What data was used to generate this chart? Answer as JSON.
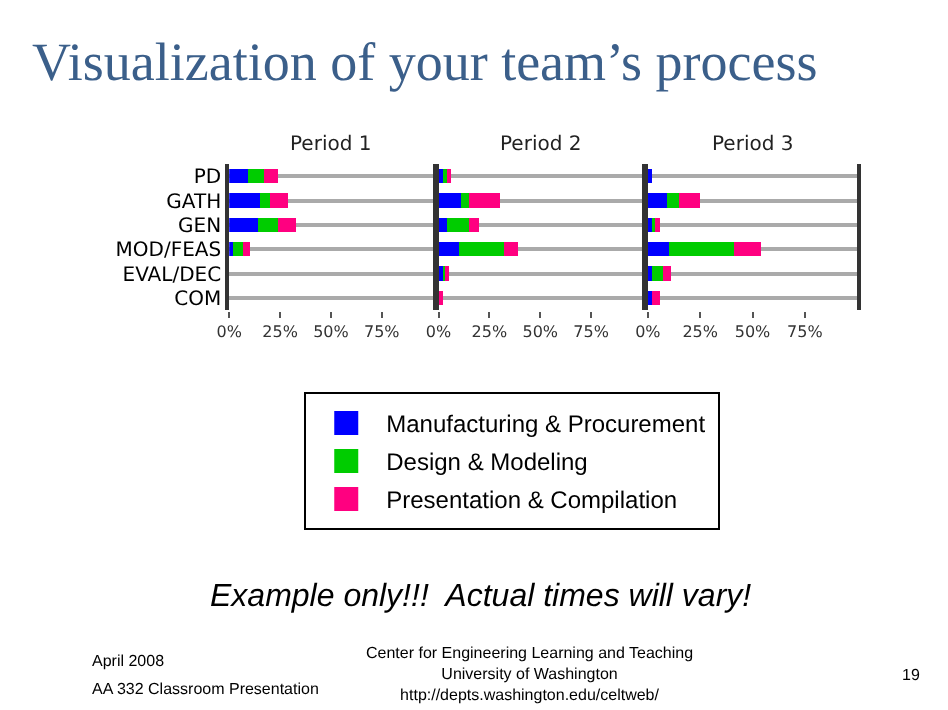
{
  "chart_data": [
    {
      "type": "bar",
      "orientation": "horizontal",
      "stacked": true,
      "title": "Period 1",
      "categories": [
        "PD",
        "GATH",
        "GEN",
        "MOD/FEAS",
        "EVAL/DEC",
        "COM"
      ],
      "series": [
        {
          "name": "Manufacturing & Procurement",
          "color": "#0000ff",
          "values": [
            9,
            15,
            14,
            2,
            0,
            0
          ]
        },
        {
          "name": "Design & Modeling",
          "color": "#00cc00",
          "values": [
            8,
            5,
            10,
            5,
            0,
            0
          ]
        },
        {
          "name": "Presentation & Compilation",
          "color": "#ff0080",
          "values": [
            7,
            9,
            9,
            3,
            0,
            0
          ]
        }
      ],
      "xlim": [
        0,
        100
      ],
      "xticks": [
        {
          "value": 0,
          "label": "0%"
        },
        {
          "value": 25,
          "label": "25%"
        },
        {
          "value": 50,
          "label": "50%"
        },
        {
          "value": 75,
          "label": "75%"
        }
      ],
      "grid": "y",
      "legend": "bottom",
      "annotations": [
        "Visualization of your team’s process",
        "Example only!!!  Actual times will vary!",
        "April 2008",
        "AA 332 Classroom Presentation",
        "Center for Engineering Learning and Teaching\nUniversity of Washington\nhttp://depts.washington.edu/celtweb/",
        "19"
      ]
    },
    {
      "type": "bar",
      "orientation": "horizontal",
      "stacked": true,
      "title": "Period 2",
      "categories": [
        null,
        null,
        null,
        null,
        null,
        null
      ],
      "series": [
        {
          "color": "#0000ff",
          "values": [
            2,
            11,
            4,
            10,
            2,
            0
          ]
        },
        {
          "color": "#00cc00",
          "values": [
            2,
            4,
            11,
            22,
            1,
            0
          ]
        },
        {
          "color": "#ff0080",
          "values": [
            1,
            15,
            5,
            7,
            2,
            1
          ]
        }
      ],
      "xlim": [
        0,
        100
      ],
      "xticks": [
        {
          "value": 0,
          "label": "0%"
        },
        {
          "value": 25,
          "label": "25%"
        },
        {
          "value": 50,
          "label": "50%"
        },
        {
          "value": 75,
          "label": "75%"
        }
      ],
      "grid": "y",
      "tick_labels": "x"
    },
    {
      "type": "bar",
      "orientation": "horizontal",
      "stacked": true,
      "title": "Period 3",
      "categories": [
        null,
        null,
        null,
        null,
        null,
        null
      ],
      "series": [
        {
          "color": "#0000ff",
          "values": [
            1,
            9,
            2,
            10,
            2,
            2
          ]
        },
        {
          "color": "#00cc00",
          "values": [
            0,
            6,
            1.5,
            31,
            5,
            0
          ]
        },
        {
          "color": "#ff0080",
          "values": [
            0,
            10,
            2.5,
            13,
            4,
            4
          ]
        }
      ],
      "xlim": [
        0,
        100
      ],
      "xticks": [
        {
          "value": 0,
          "label": "0%"
        },
        {
          "value": 25,
          "label": "25%"
        },
        {
          "value": 50,
          "label": "50%"
        },
        {
          "value": 75,
          "label": "75%"
        }
      ],
      "grid": "y",
      "tick_labels": "x"
    }
  ]
}
